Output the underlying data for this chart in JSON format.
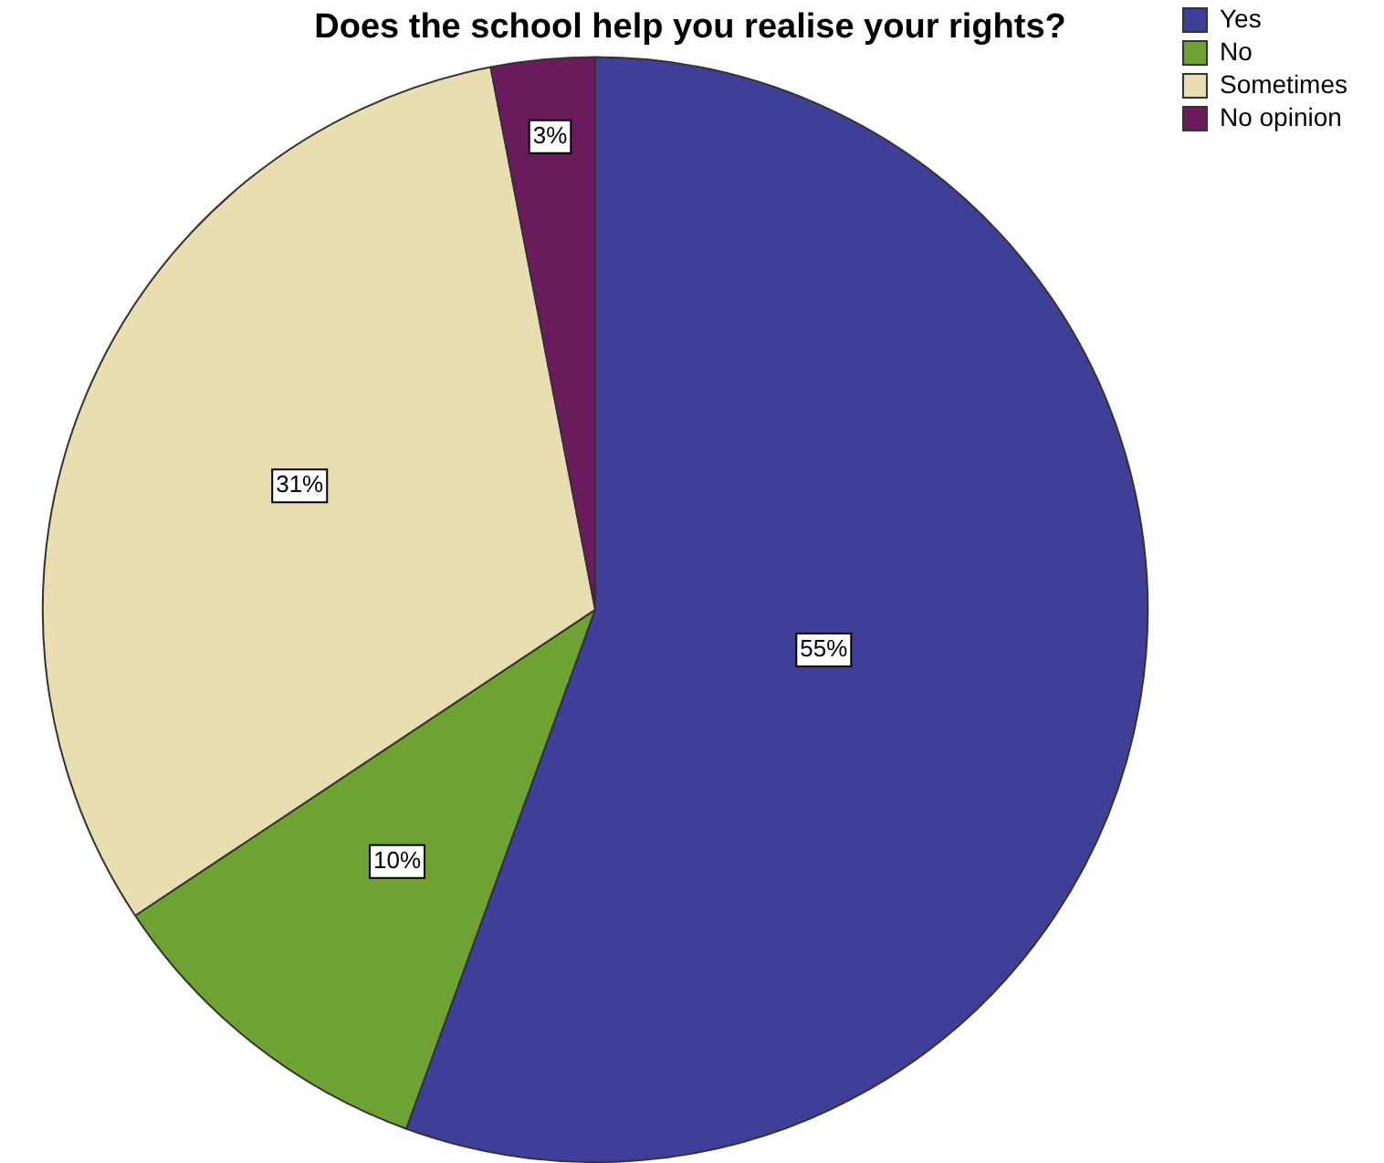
{
  "chart_data": {
    "type": "pie",
    "title": "Does the school help you realise your rights?",
    "categories": [
      "Yes",
      "No",
      "Sometimes",
      "No opinion"
    ],
    "values": [
      55,
      10,
      31,
      3
    ],
    "colors": [
      "#3f3f9a",
      "#6ea232",
      "#e9ddb2",
      "#6a1b5c"
    ],
    "value_labels": [
      "55%",
      "10%",
      "31%",
      "3%"
    ],
    "legend": "top right"
  }
}
